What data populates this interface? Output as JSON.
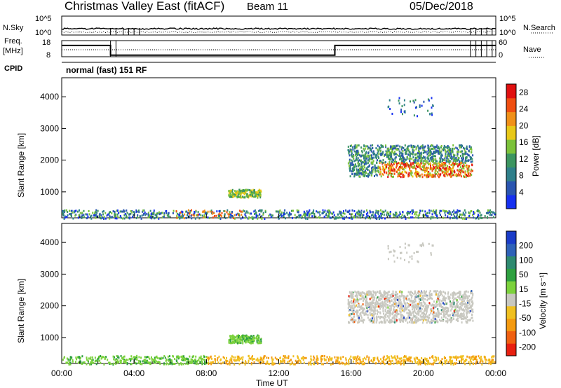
{
  "header": {
    "station": "Christmas Valley East (fitACF)",
    "beam": "Beam 11",
    "date": "05/Dec/2018"
  },
  "panels": {
    "nsky_label": "N.Sky",
    "nsearch_label": "N.Search",
    "freq_label_top": "Freq.",
    "freq_label_bottom": "[MHz]",
    "nave_label": "Nave",
    "cpid_label": "CPID",
    "cpid_text": "normal (fast) 151 RF",
    "noise_ticks": [
      "10^5",
      "10^0"
    ],
    "freq_ticks": [
      "18",
      "8"
    ],
    "nave_ticks": [
      "60",
      "0"
    ]
  },
  "axes": {
    "xlabel": "Time UT",
    "ylabel": "Slant Range [km]",
    "xticks": [
      "00:00",
      "04:00",
      "08:00",
      "12:00",
      "16:00",
      "20:00",
      "00:00"
    ],
    "yticks": [
      "1000",
      "2000",
      "3000",
      "4000"
    ]
  },
  "colorbars": {
    "power_label": "Power [dB]",
    "power_ticks": [
      "4",
      "8",
      "12",
      "16",
      "20",
      "24",
      "28"
    ],
    "velocity_label": "Velocity [m s⁻¹]",
    "velocity_ticks": [
      "200",
      "100",
      "50",
      "15",
      "-15",
      "-50",
      "-100",
      "-200"
    ]
  },
  "colors": {
    "power_scale": [
      "#1630f0",
      "#2a55b0",
      "#2f7f8a",
      "#3c9560",
      "#7cc23a",
      "#e8c818",
      "#f09018",
      "#f04e10",
      "#e01010"
    ],
    "velocity_scale": [
      "#1a3cc8",
      "#2f62b8",
      "#2e8a70",
      "#2ea040",
      "#7cd23c",
      "#c8c8c0",
      "#f0c020",
      "#f49a10",
      "#f06010",
      "#e82010"
    ]
  },
  "chart_data": {
    "type": "heatmap",
    "x_range_hours": [
      0,
      24
    ],
    "y_range_km": [
      180,
      4600
    ],
    "regions": [
      {
        "name": "near-range band",
        "t": [
          0,
          24
        ],
        "range_km": [
          180,
          450
        ]
      },
      {
        "name": "patch",
        "t": [
          9.2,
          11.0
        ],
        "range_km": [
          850,
          1100
        ]
      },
      {
        "name": "upper band",
        "t": [
          15.8,
          22.7
        ],
        "range_km": [
          1500,
          2500
        ]
      },
      {
        "name": "sparse far echoes",
        "t": [
          18.0,
          20.5
        ],
        "range_km": [
          3400,
          4000
        ]
      }
    ],
    "frequency_steps": [
      {
        "t": [
          0,
          2.7
        ],
        "mhz": 15
      },
      {
        "t": [
          2.7,
          15.1
        ],
        "mhz": 9
      },
      {
        "t": [
          15.1,
          24
        ],
        "mhz": 15
      }
    ]
  }
}
